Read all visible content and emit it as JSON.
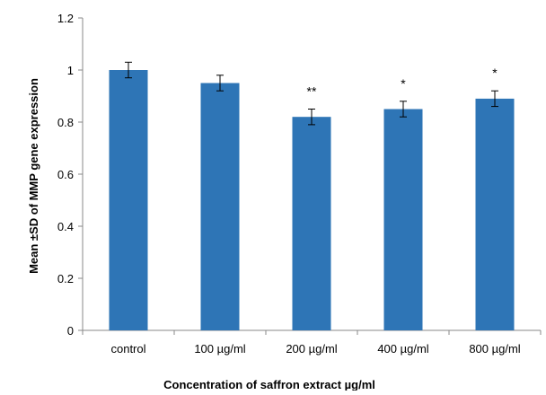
{
  "chart_data": {
    "type": "bar",
    "categories": [
      "control",
      "100 µg/ml",
      "200 µg/ml",
      "400 µg/ml",
      "800 µg/ml"
    ],
    "values": [
      1.0,
      0.95,
      0.82,
      0.85,
      0.89
    ],
    "errors": [
      0.03,
      0.03,
      0.03,
      0.03,
      0.03
    ],
    "significance": [
      "",
      "",
      "**",
      "*",
      "*"
    ],
    "xlabel": "Concentration of saffron extract µg/ml",
    "ylabel": "Mean ±SD of MMP gene expression",
    "ylim": [
      0,
      1.2
    ],
    "yticks": [
      "0",
      "0.2",
      "0.4",
      "0.6",
      "0.8",
      "1",
      "1.2"
    ],
    "bar_color": "#2e75b6",
    "grid": false,
    "legend": "none"
  }
}
